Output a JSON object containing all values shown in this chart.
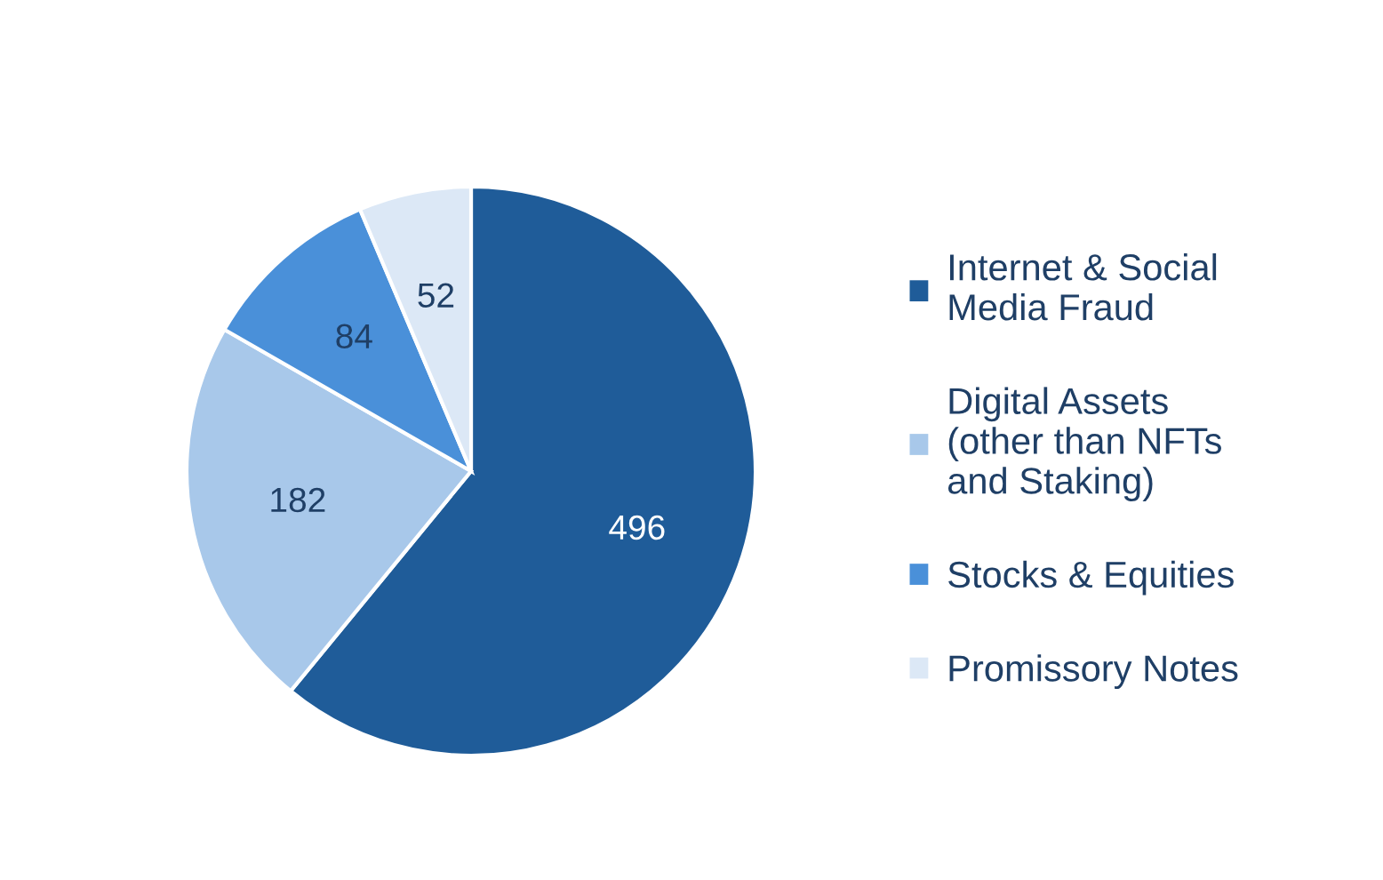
{
  "chart_data": {
    "type": "pie",
    "categories": [
      "Internet & Social\nMedia Fraud",
      "Digital Assets\n(other than NFTs\nand Staking)",
      "Stocks & Equities",
      "Promissory Notes"
    ],
    "values": [
      496,
      182,
      84,
      52
    ],
    "colors": [
      "#1f5c99",
      "#a8c8ea",
      "#4a90d9",
      "#dce8f6"
    ],
    "data_labels": true,
    "legend": "right"
  }
}
